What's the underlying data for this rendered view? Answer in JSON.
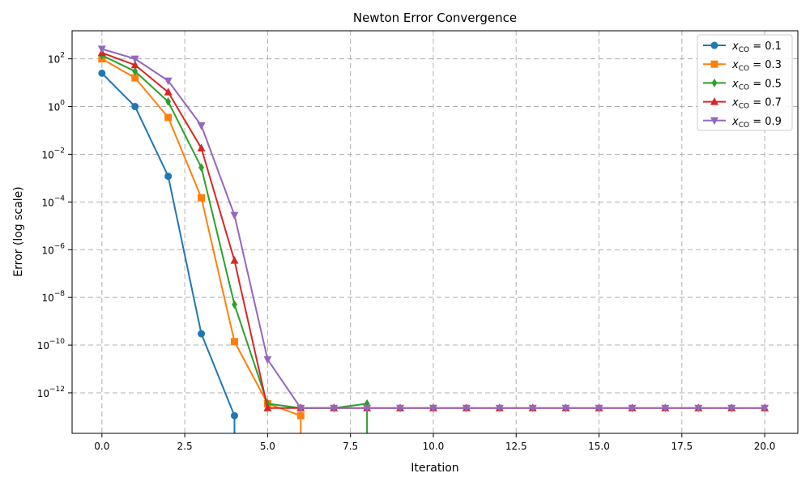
{
  "chart_data": {
    "type": "line",
    "title": "Newton Error Convergence",
    "xlabel": "Iteration",
    "ylabel": "Error (log scale)",
    "x_scale": "linear",
    "y_scale": "log",
    "xlim": [
      -0.9,
      21.0
    ],
    "ylim": [
      2e-14,
      1500
    ],
    "x_ticks": [
      0.0,
      2.5,
      5.0,
      7.5,
      10.0,
      12.5,
      15.0,
      17.5,
      20.0
    ],
    "x_tick_labels": [
      "0.0",
      "2.5",
      "5.0",
      "7.5",
      "10.0",
      "12.5",
      "15.0",
      "17.5",
      "20.0"
    ],
    "y_tick_exponents": [
      2,
      0,
      -2,
      -4,
      -6,
      -8,
      -10,
      -12
    ],
    "grid": true,
    "legend_position": "top-right",
    "series": [
      {
        "name": "x_CO = 0.1",
        "label_var": "x",
        "label_sub": "CO",
        "label_value": "= 0.1",
        "color": "#1f77b4",
        "marker": "circle",
        "x": [
          0,
          1,
          2,
          3,
          4
        ],
        "y": [
          25,
          1.0,
          0.0012,
          3e-10,
          1.1e-13
        ],
        "drop_to_zero_at": 4
      },
      {
        "name": "x_CO = 0.3",
        "label_var": "x",
        "label_sub": "CO",
        "label_value": "= 0.3",
        "color": "#ff7f0e",
        "marker": "square",
        "x": [
          0,
          1,
          2,
          3,
          4,
          5,
          6
        ],
        "y": [
          100,
          16,
          0.35,
          0.00015,
          1.4e-10,
          3.5e-13,
          1.1e-13
        ],
        "drop_to_zero_at": 6
      },
      {
        "name": "x_CO = 0.5",
        "label_var": "x",
        "label_sub": "CO",
        "label_value": "= 0.5",
        "color": "#2ca02c",
        "marker": "thin_diamond",
        "x": [
          0,
          1,
          2,
          3,
          4,
          5,
          6,
          7,
          8
        ],
        "y": [
          140,
          30,
          1.6,
          0.0028,
          5e-09,
          3.5e-13,
          2.3e-13,
          2.3e-13,
          3.5e-13
        ],
        "drop_to_zero_at": 8
      },
      {
        "name": "x_CO = 0.7",
        "label_var": "x",
        "label_sub": "CO",
        "label_value": "= 0.7",
        "color": "#d62728",
        "marker": "triangle_up",
        "x": [
          0,
          1,
          2,
          3,
          4,
          5,
          6,
          7,
          8,
          9,
          10,
          11,
          12,
          13,
          14,
          15,
          16,
          17,
          18,
          19,
          20
        ],
        "y": [
          180,
          55,
          4.0,
          0.018,
          3.5e-07,
          2.3e-13,
          2.3e-13,
          2.3e-13,
          2.3e-13,
          2.3e-13,
          2.3e-13,
          2.3e-13,
          2.3e-13,
          2.3e-13,
          2.3e-13,
          2.3e-13,
          2.3e-13,
          2.3e-13,
          2.3e-13,
          2.3e-13,
          2.3e-13
        ]
      },
      {
        "name": "x_CO = 0.9",
        "label_var": "x",
        "label_sub": "CO",
        "label_value": "= 0.9",
        "color": "#9467bd",
        "marker": "triangle_down",
        "x": [
          0,
          1,
          2,
          3,
          4,
          5,
          6,
          7,
          8,
          9,
          10,
          11,
          12,
          13,
          14,
          15,
          16,
          17,
          18,
          19,
          20
        ],
        "y": [
          260,
          100,
          12,
          0.16,
          2.8e-05,
          2.5e-11,
          2.3e-13,
          2.3e-13,
          2.3e-13,
          2.3e-13,
          2.3e-13,
          2.3e-13,
          2.3e-13,
          2.3e-13,
          2.3e-13,
          2.3e-13,
          2.3e-13,
          2.3e-13,
          2.3e-13,
          2.3e-13,
          2.3e-13
        ]
      }
    ]
  }
}
